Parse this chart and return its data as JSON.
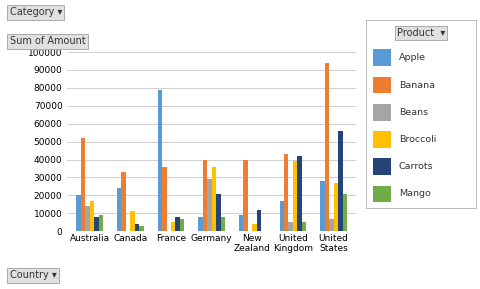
{
  "categories": [
    "Australia",
    "Canada",
    "France",
    "Germany",
    "New\nZealand",
    "United\nKingdom",
    "United\nStates"
  ],
  "cat_keys": [
    "Australia",
    "Canada",
    "France",
    "Germany",
    "New\nZealand",
    "United\nKingdom",
    "United\nStates"
  ],
  "products": [
    "Apple",
    "Banana",
    "Beans",
    "Broccoli",
    "Carrots",
    "Mango"
  ],
  "bar_colors": {
    "Apple": "#5B9BD5",
    "Banana": "#ED7D31",
    "Beans": "#A5A5A5",
    "Broccoli": "#FFC000",
    "Carrots": "#264478",
    "Mango": "#70AD47"
  },
  "data": {
    "Australia": {
      "Apple": 20000,
      "Banana": 52000,
      "Beans": 14000,
      "Broccoli": 17000,
      "Carrots": 8000,
      "Mango": 9000
    },
    "Canada": {
      "Apple": 24000,
      "Banana": 33000,
      "Beans": 0,
      "Broccoli": 11000,
      "Carrots": 4000,
      "Mango": 3000
    },
    "France": {
      "Apple": 79000,
      "Banana": 36000,
      "Beans": 0,
      "Broccoli": 5000,
      "Carrots": 8000,
      "Mango": 7000
    },
    "Germany": {
      "Apple": 8000,
      "Banana": 40000,
      "Beans": 29000,
      "Broccoli": 36000,
      "Carrots": 21000,
      "Mango": 8000
    },
    "New\nZealand": {
      "Apple": 9000,
      "Banana": 40000,
      "Beans": 0,
      "Broccoli": 4000,
      "Carrots": 12000,
      "Mango": 0
    },
    "United\nKingdom": {
      "Apple": 17000,
      "Banana": 43000,
      "Beans": 5000,
      "Broccoli": 39000,
      "Carrots": 42000,
      "Mango": 5000
    },
    "United\nStates": {
      "Apple": 28000,
      "Banana": 94000,
      "Beans": 7000,
      "Broccoli": 27000,
      "Carrots": 56000,
      "Mango": 21000
    }
  },
  "ylim": [
    0,
    100000
  ],
  "yticks": [
    0,
    10000,
    20000,
    30000,
    40000,
    50000,
    60000,
    70000,
    80000,
    90000,
    100000
  ],
  "ytick_labels": [
    "0",
    "10000",
    "20000",
    "30000",
    "40000",
    "50000",
    "60000",
    "70000",
    "80000",
    "90000",
    "100000"
  ],
  "background_color": "#FFFFFF",
  "plot_bg": "#FFFFFF",
  "grid_color": "#D0D0D0",
  "header_label": "Category",
  "sum_label": "Sum of Amount",
  "footer_label": "Country",
  "legend_title": "Product"
}
